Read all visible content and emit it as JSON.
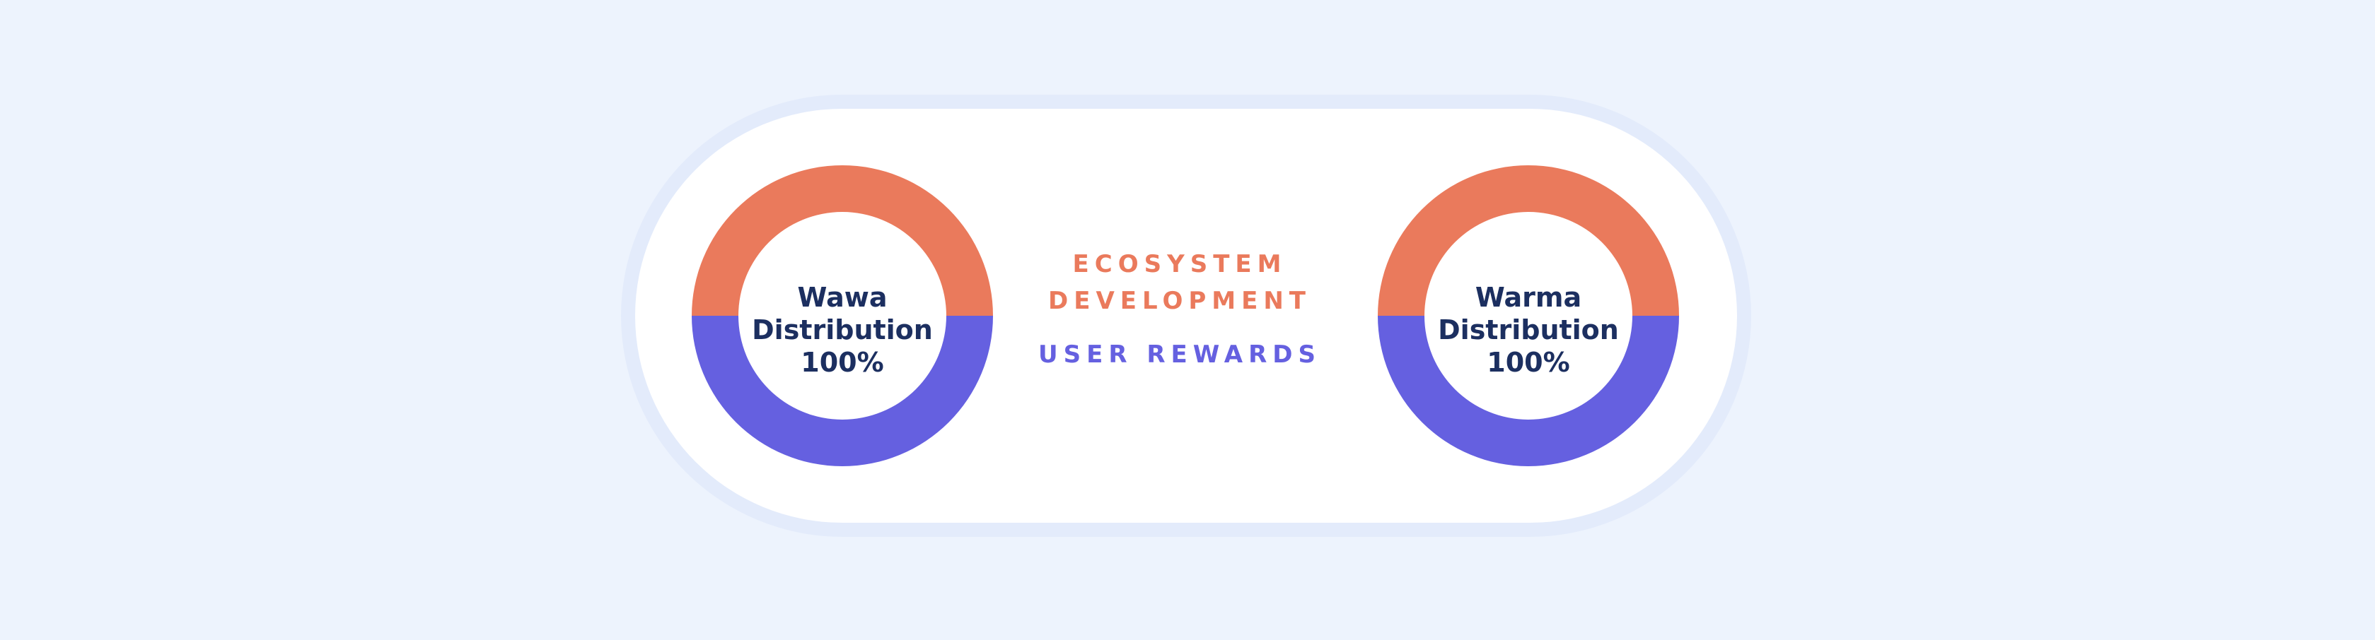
{
  "colors": {
    "background": "#edf3fd",
    "card_border": "#e3ebfb",
    "card": "#ffffff",
    "ecosystem": "#ea7a5c",
    "rewards": "#6560e0",
    "label_text": "#1c2f60"
  },
  "chart_data": [
    {
      "type": "pie",
      "center_label": [
        "Wawa",
        "Distribution",
        "100%"
      ],
      "categories": [
        "ECOSYSTEM DEVELOPMENT",
        "USER REWARDS"
      ],
      "values": [
        50,
        50
      ],
      "colors": [
        "#ea7a5c",
        "#6560e0"
      ]
    },
    {
      "type": "pie",
      "center_label": [
        "Warma",
        "Distribution",
        "100%"
      ],
      "categories": [
        "ECOSYSTEM DEVELOPMENT",
        "USER REWARDS"
      ],
      "values": [
        50,
        50
      ],
      "colors": [
        "#ea7a5c",
        "#6560e0"
      ]
    }
  ],
  "legend": {
    "ecosystem": [
      "ECOSYSTEM",
      "DEVELOPMENT"
    ],
    "rewards": "USER REWARDS"
  }
}
